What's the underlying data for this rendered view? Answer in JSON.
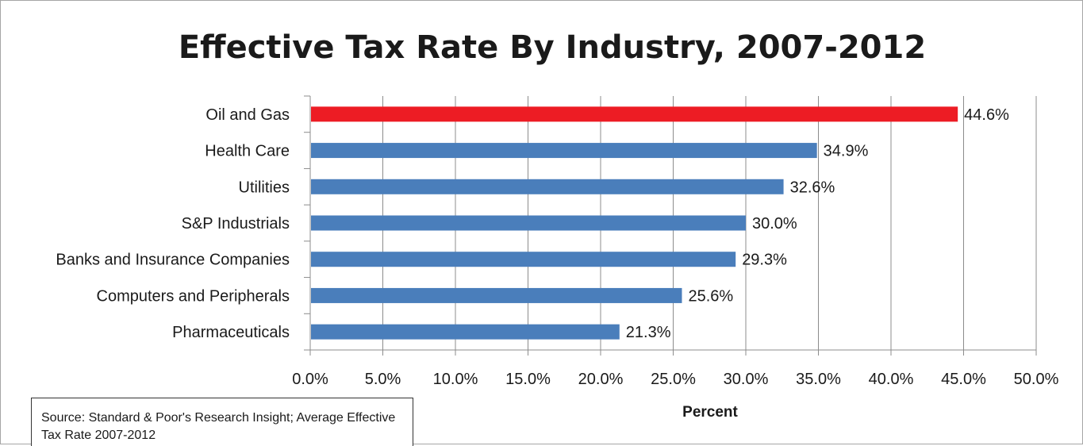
{
  "chart_data": {
    "type": "bar",
    "orientation": "horizontal",
    "title": "Effective Tax Rate By Industry, 2007-2012",
    "xlabel": "Percent",
    "ylabel": "",
    "categories": [
      "Oil and Gas",
      "Health Care",
      "Utilities",
      "S&P Industrials",
      "Banks and Insurance Companies",
      "Computers and Peripherals",
      "Pharmaceuticals"
    ],
    "values": [
      44.6,
      34.9,
      32.6,
      30.0,
      29.3,
      25.6,
      21.3
    ],
    "value_labels": [
      "44.6%",
      "34.9%",
      "32.6%",
      "30.0%",
      "29.3%",
      "25.6%",
      "21.3%"
    ],
    "bar_colors": [
      "#ed1c24",
      "#4a7ebb",
      "#4a7ebb",
      "#4a7ebb",
      "#4a7ebb",
      "#4a7ebb",
      "#4a7ebb"
    ],
    "xlim": [
      0,
      50
    ],
    "x_ticks": [
      0,
      5,
      10,
      15,
      20,
      25,
      30,
      35,
      40,
      45,
      50
    ],
    "x_tick_labels": [
      "0.0%",
      "5.0%",
      "10.0%",
      "15.0%",
      "20.0%",
      "25.0%",
      "30.0%",
      "35.0%",
      "40.0%",
      "45.0%",
      "50.0%"
    ],
    "grid": true,
    "legend": "none"
  },
  "source_note": "Source: Standard & Poor's Research Insight; Average Effective Tax Rate 2007-2012"
}
